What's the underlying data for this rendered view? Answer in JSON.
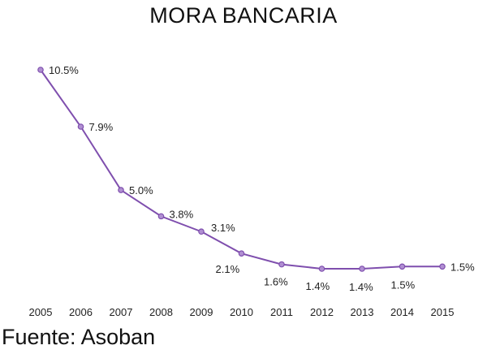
{
  "chart_data": {
    "type": "line",
    "title": "MORA BANCARIA",
    "x": [
      "2005",
      "2006",
      "2007",
      "2008",
      "2009",
      "2010",
      "2011",
      "2012",
      "2013",
      "2014",
      "2015"
    ],
    "series": [
      {
        "values": [
          10.5,
          7.9,
          5.0,
          3.8,
          3.1,
          2.1,
          1.6,
          1.4,
          1.4,
          1.5,
          1.5
        ],
        "labels": [
          "10.5%",
          "7.9%",
          "5.0%",
          "3.8%",
          "3.1%",
          "2.1%",
          "1.6%",
          "1.4%",
          "1.4%",
          "1.5%",
          "1.5%"
        ],
        "color": "#7f4fae"
      }
    ],
    "grid": false,
    "legend": "none"
  },
  "footer": {
    "source": "Fuente: Asoban"
  }
}
